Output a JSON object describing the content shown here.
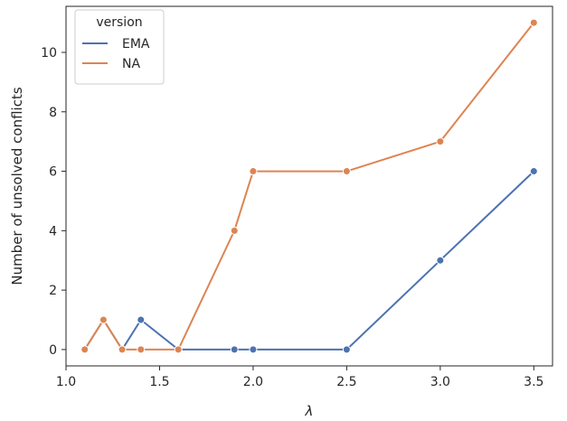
{
  "chart_data": {
    "type": "line",
    "xlabel": "λ",
    "ylabel": "Number of unsolved conflicts",
    "xlim": [
      1.0,
      3.6
    ],
    "ylim": [
      -0.55,
      11.55
    ],
    "xticks": [
      1.0,
      1.5,
      2.0,
      2.5,
      3.0,
      3.5
    ],
    "xtick_labels": [
      "1.0",
      "1.5",
      "2.0",
      "2.5",
      "3.0",
      "3.5"
    ],
    "yticks": [
      0,
      2,
      4,
      6,
      8,
      10
    ],
    "ytick_labels": [
      "0",
      "2",
      "4",
      "6",
      "8",
      "10"
    ],
    "grid": false,
    "markers": true,
    "legend": {
      "title": "version",
      "placement": "top-left"
    },
    "series": [
      {
        "name": "EMA",
        "color": "#4c72b0",
        "x": [
          1.1,
          1.2,
          1.3,
          1.4,
          1.6,
          1.9,
          2.0,
          2.5,
          3.0,
          3.5
        ],
        "y": [
          0,
          1,
          0,
          1,
          0,
          0,
          0,
          0,
          3,
          6
        ]
      },
      {
        "name": "NA",
        "color": "#dd8452",
        "x": [
          1.1,
          1.2,
          1.3,
          1.4,
          1.6,
          1.9,
          2.0,
          2.5,
          3.0,
          3.5
        ],
        "y": [
          0,
          1,
          0,
          0,
          0,
          4,
          6,
          6,
          7,
          11
        ]
      }
    ]
  }
}
